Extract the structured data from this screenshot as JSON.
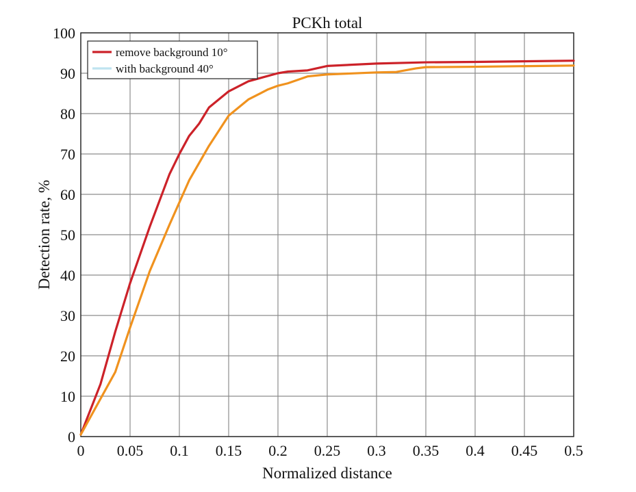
{
  "chart_data": {
    "type": "line",
    "title": "PCKh total",
    "xlabel": "Normalized distance",
    "ylabel": "Detection rate, %",
    "xlim": [
      0,
      0.5
    ],
    "ylim": [
      0,
      100
    ],
    "xticks": [
      0,
      0.05,
      0.1,
      0.15,
      0.2,
      0.25,
      0.3,
      0.35,
      0.4,
      0.45,
      0.5
    ],
    "xtick_labels": [
      "0",
      "0.05",
      "0.1",
      "0.15",
      "0.2",
      "0.25",
      "0.3",
      "0.35",
      "0.4",
      "0.45",
      "0.5"
    ],
    "yticks": [
      0,
      10,
      20,
      30,
      40,
      50,
      60,
      70,
      80,
      90,
      100
    ],
    "ytick_labels": [
      "0",
      "10",
      "20",
      "30",
      "40",
      "50",
      "60",
      "70",
      "80",
      "90",
      "100"
    ],
    "grid": true,
    "legend_position": "top-left",
    "legend": [
      {
        "label": "remove background 10°",
        "color": "#cc2229"
      },
      {
        "label": "with background 40°",
        "color": "#bfe3f0"
      }
    ],
    "series": [
      {
        "color": "#cc2229",
        "x": [
          0,
          0.02,
          0.035,
          0.05,
          0.07,
          0.09,
          0.1,
          0.11,
          0.12,
          0.13,
          0.15,
          0.17,
          0.2,
          0.21,
          0.23,
          0.25,
          0.3,
          0.35,
          0.4,
          0.5
        ],
        "y": [
          0.5,
          13,
          26,
          38,
          52,
          65,
          70,
          74.5,
          77.5,
          81.5,
          85.5,
          88,
          90,
          90.4,
          90.7,
          91.8,
          92.4,
          92.7,
          92.8,
          93.1
        ]
      },
      {
        "color": "#f0921e",
        "x": [
          0,
          0.035,
          0.05,
          0.07,
          0.09,
          0.11,
          0.13,
          0.15,
          0.17,
          0.19,
          0.2,
          0.21,
          0.23,
          0.25,
          0.3,
          0.32,
          0.34,
          0.35,
          0.4,
          0.5
        ],
        "y": [
          0.5,
          16,
          27,
          41,
          52.5,
          63.5,
          72,
          79.5,
          83.5,
          86,
          86.9,
          87.5,
          89.2,
          89.7,
          90.2,
          90.3,
          91.2,
          91.5,
          91.6,
          91.9
        ]
      }
    ]
  }
}
